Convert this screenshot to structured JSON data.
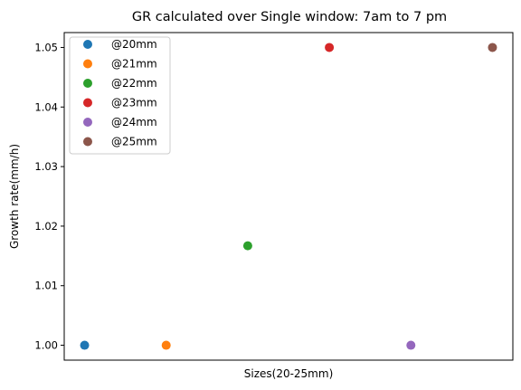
{
  "chart_data": {
    "type": "scatter",
    "title": "GR calculated over Single window: 7am to 7 pm",
    "xlabel": "Sizes(20-25mm)",
    "ylabel": "Growth rate(mm/h)",
    "ylim": [
      0.9975,
      1.0525
    ],
    "xlim": [
      -0.25,
      5.25
    ],
    "y_ticks": [
      1.0,
      1.01,
      1.02,
      1.03,
      1.04,
      1.05
    ],
    "y_tick_labels": [
      "1.00",
      "1.01",
      "1.02",
      "1.03",
      "1.04",
      "1.05"
    ],
    "x_ticks_visible": false,
    "grid": false,
    "legend_position": "upper-left",
    "series": [
      {
        "name": "@20mm",
        "color": "#1f77b4",
        "x": [
          0
        ],
        "y": [
          1.0
        ]
      },
      {
        "name": "@21mm",
        "color": "#ff7f0e",
        "x": [
          1
        ],
        "y": [
          1.0
        ]
      },
      {
        "name": "@22mm",
        "color": "#2ca02c",
        "x": [
          2
        ],
        "y": [
          1.0167
        ]
      },
      {
        "name": "@23mm",
        "color": "#d62728",
        "x": [
          3
        ],
        "y": [
          1.05
        ]
      },
      {
        "name": "@24mm",
        "color": "#9467bd",
        "x": [
          4
        ],
        "y": [
          1.0
        ]
      },
      {
        "name": "@25mm",
        "color": "#8c564b",
        "x": [
          5
        ],
        "y": [
          1.05
        ]
      }
    ]
  }
}
